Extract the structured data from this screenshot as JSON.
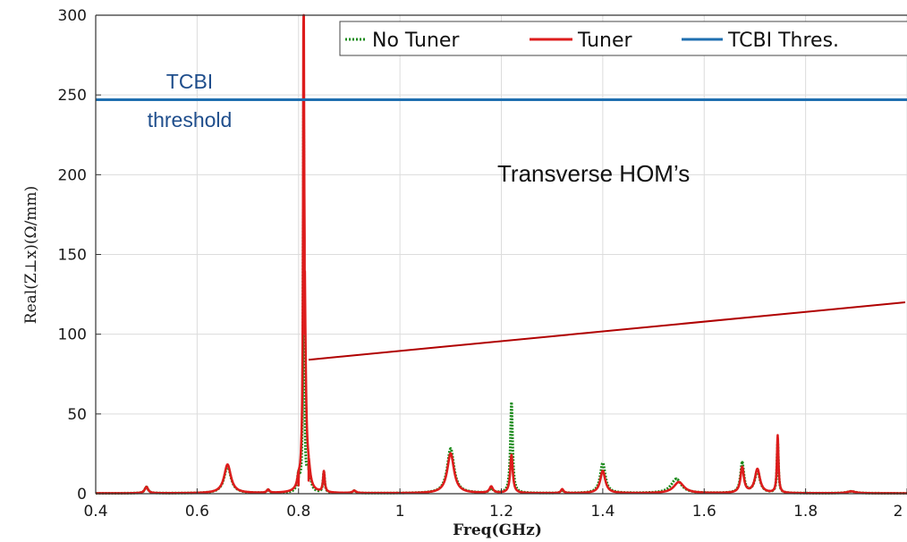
{
  "chart_data": {
    "type": "line",
    "xlabel": "Freq(GHz)",
    "ylabel": "Real(Z⊥x)(Ω/mm)",
    "xlim": [
      0.4,
      2.0
    ],
    "ylim": [
      0,
      300
    ],
    "xticks": [
      "0.4",
      "0.6",
      "0.8",
      "1",
      "1.2",
      "1.4",
      "1.6",
      "1.8",
      "2"
    ],
    "yticks": [
      "0",
      "50",
      "100",
      "150",
      "200",
      "250",
      "300"
    ],
    "grid": true,
    "legend_position": "top-right",
    "series": [
      {
        "name": "No Tuner",
        "color": "#1a8a1a",
        "style": "dotted",
        "peaks": [
          {
            "f": 0.5,
            "v": 4,
            "w": 0.004
          },
          {
            "f": 0.66,
            "v": 17,
            "w": 0.008
          },
          {
            "f": 0.74,
            "v": 2,
            "w": 0.003
          },
          {
            "f": 0.8,
            "v": 10,
            "w": 0.003
          },
          {
            "f": 0.81,
            "v": 245,
            "w": 0.0012
          },
          {
            "f": 0.82,
            "v": 15,
            "w": 0.004
          },
          {
            "f": 0.85,
            "v": 13,
            "w": 0.002
          },
          {
            "f": 0.91,
            "v": 1.5,
            "w": 0.004
          },
          {
            "f": 1.1,
            "v": 28,
            "w": 0.008
          },
          {
            "f": 1.18,
            "v": 3,
            "w": 0.004
          },
          {
            "f": 1.22,
            "v": 57,
            "w": 0.0025
          },
          {
            "f": 1.32,
            "v": 2,
            "w": 0.003
          },
          {
            "f": 1.4,
            "v": 19,
            "w": 0.006
          },
          {
            "f": 1.545,
            "v": 9,
            "w": 0.012
          },
          {
            "f": 1.675,
            "v": 19,
            "w": 0.004
          },
          {
            "f": 1.705,
            "v": 14,
            "w": 0.006
          },
          {
            "f": 1.745,
            "v": 32,
            "w": 0.0018
          },
          {
            "f": 1.89,
            "v": 1.2,
            "w": 0.01
          }
        ]
      },
      {
        "name": "Tuner",
        "color": "#dd1c1c",
        "style": "solid",
        "peaks": [
          {
            "f": 0.5,
            "v": 4,
            "w": 0.004
          },
          {
            "f": 0.66,
            "v": 18,
            "w": 0.008
          },
          {
            "f": 0.74,
            "v": 2,
            "w": 0.003
          },
          {
            "f": 0.8,
            "v": 5,
            "w": 0.003
          },
          {
            "f": 0.81,
            "v": 288,
            "w": 0.001
          },
          {
            "f": 0.812,
            "v": 100,
            "w": 0.003
          },
          {
            "f": 0.82,
            "v": 8,
            "w": 0.004
          },
          {
            "f": 0.85,
            "v": 13,
            "w": 0.002
          },
          {
            "f": 0.91,
            "v": 1.5,
            "w": 0.004
          },
          {
            "f": 1.1,
            "v": 25,
            "w": 0.008
          },
          {
            "f": 1.18,
            "v": 4,
            "w": 0.004
          },
          {
            "f": 1.22,
            "v": 24,
            "w": 0.003
          },
          {
            "f": 1.32,
            "v": 2.5,
            "w": 0.003
          },
          {
            "f": 1.4,
            "v": 14,
            "w": 0.006
          },
          {
            "f": 1.55,
            "v": 7,
            "w": 0.012
          },
          {
            "f": 1.675,
            "v": 16,
            "w": 0.004
          },
          {
            "f": 1.705,
            "v": 15,
            "w": 0.006
          },
          {
            "f": 1.745,
            "v": 36,
            "w": 0.0018
          },
          {
            "f": 1.89,
            "v": 1.2,
            "w": 0.01
          }
        ]
      },
      {
        "name": "TCBI Thres.",
        "color": "#1f6fb0",
        "style": "solid",
        "x": [
          0.4,
          2.0
        ],
        "y": [
          247,
          247
        ]
      }
    ],
    "annotations": [
      {
        "text_line1": "TCBI",
        "text_line2": "threshold",
        "color": "#1f4e8c"
      },
      {
        "text": "Transverse HOM’s",
        "arrow_from": [
          0.82,
          84
        ],
        "arrow_to": [
          2.0,
          120
        ],
        "arrow_color": "#b00000"
      }
    ]
  }
}
